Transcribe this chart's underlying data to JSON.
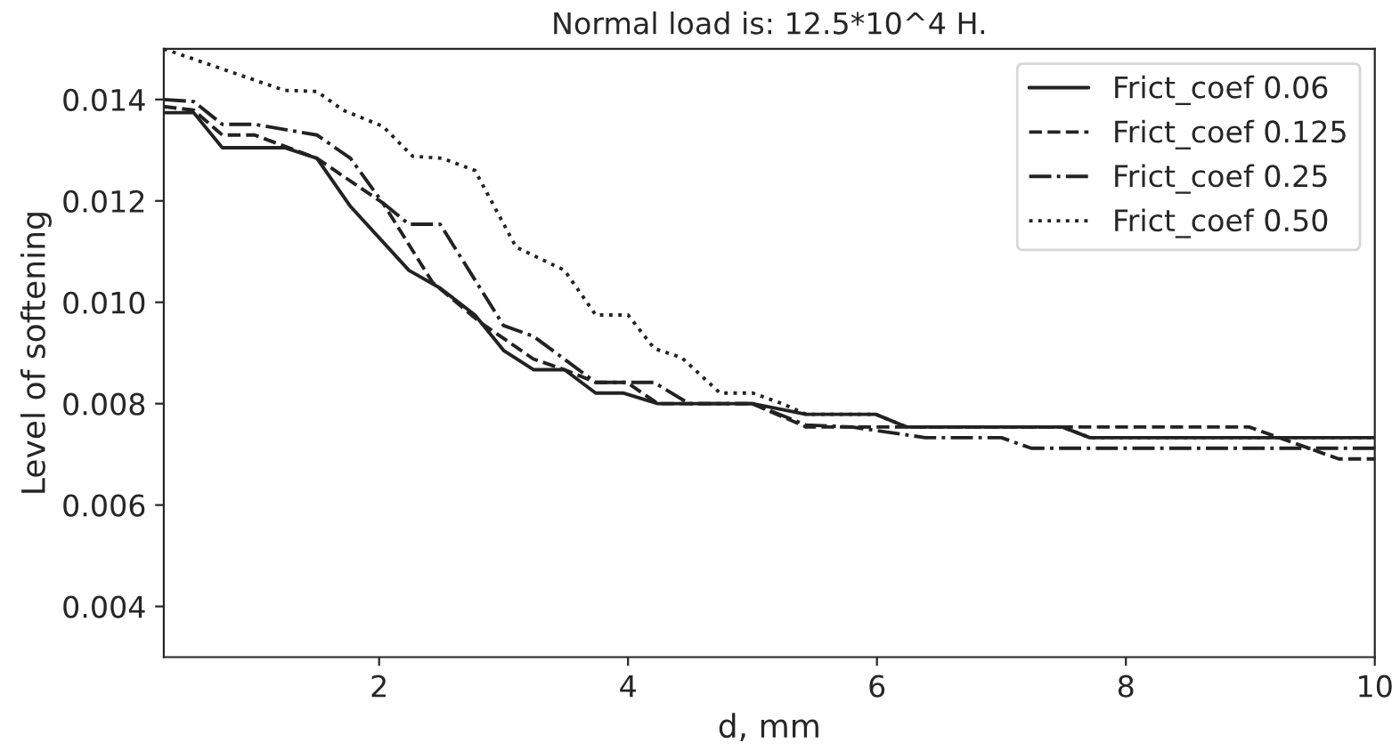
{
  "chart_data": {
    "type": "line",
    "title": "Normal load is: 12.5*10^4 H.",
    "xlabel": "d, mm",
    "ylabel": "Level of softening",
    "xlim": [
      0.27,
      10
    ],
    "ylim": [
      0.003,
      0.015
    ],
    "xticks": [
      2,
      4,
      6,
      8,
      10
    ],
    "yticks": [
      {
        "value": 0.004,
        "label": "0.004"
      },
      {
        "value": 0.006,
        "label": "0.006"
      },
      {
        "value": 0.008,
        "label": "0.008"
      },
      {
        "value": 0.01,
        "label": "0.010"
      },
      {
        "value": 0.012,
        "label": "0.012"
      },
      {
        "value": 0.014,
        "label": "0.014"
      }
    ],
    "grid": false,
    "legend": "top right",
    "series": [
      {
        "name": "Frict_coef 0.06",
        "color": "#222222",
        "line_style": "solid",
        "x": [
          0.27,
          0.51,
          0.74,
          1.24,
          1.5,
          1.77,
          2.24,
          2.49,
          2.77,
          3.0,
          3.24,
          3.49,
          3.74,
          3.96,
          4.24,
          5.0,
          5.43,
          5.99,
          6.24,
          7.49,
          7.71,
          10
        ],
        "values": [
          0.01374,
          0.01374,
          0.01305,
          0.01305,
          0.01284,
          0.01189,
          0.01063,
          0.01028,
          0.00975,
          0.00905,
          0.00867,
          0.00867,
          0.00821,
          0.00821,
          0.008,
          0.008,
          0.00779,
          0.00779,
          0.00754,
          0.00754,
          0.00733,
          0.00733
        ]
      },
      {
        "name": "Frict_coef 0.125",
        "color": "#222222",
        "line_style": "dashed",
        "x": [
          0.27,
          0.51,
          0.74,
          1.0,
          1.5,
          2.03,
          2.43,
          2.81,
          3.24,
          3.49,
          3.74,
          3.99,
          4.24,
          5.0,
          5.43,
          8.99,
          9.71,
          10
        ],
        "values": [
          0.01386,
          0.01379,
          0.0133,
          0.0133,
          0.01284,
          0.01196,
          0.01039,
          0.00961,
          0.00888,
          0.00867,
          0.00842,
          0.00842,
          0.008,
          0.008,
          0.00754,
          0.00754,
          0.00691,
          0.00691
        ]
      },
      {
        "name": "Frict_coef 0.25",
        "color": "#222222",
        "line_style": "dashdot",
        "x": [
          0.27,
          0.51,
          0.74,
          1.0,
          1.5,
          1.77,
          2.03,
          2.24,
          2.49,
          3.0,
          3.24,
          3.74,
          4.21,
          4.49,
          5.0,
          5.43,
          5.8,
          6.39,
          7.0,
          7.24,
          10
        ],
        "values": [
          0.014,
          0.01396,
          0.01351,
          0.01351,
          0.0133,
          0.01284,
          0.01196,
          0.01154,
          0.01154,
          0.00954,
          0.00933,
          0.00842,
          0.00842,
          0.008,
          0.008,
          0.00758,
          0.00754,
          0.00733,
          0.00733,
          0.00712,
          0.00712
        ]
      },
      {
        "name": "Frict_coef 0.50",
        "color": "#222222",
        "line_style": "dotted",
        "x": [
          0.27,
          1.24,
          1.5,
          1.71,
          2.03,
          2.27,
          2.51,
          2.77,
          3.1,
          3.49,
          3.74,
          4.0,
          4.21,
          4.43,
          4.74,
          5.0,
          5.24,
          5.43,
          5.99,
          6.24,
          7.49,
          7.71,
          10
        ],
        "values": [
          0.015,
          0.01418,
          0.01416,
          0.01379,
          0.01347,
          0.01288,
          0.01284,
          0.0126,
          0.01109,
          0.01063,
          0.00975,
          0.00975,
          0.00909,
          0.00891,
          0.00821,
          0.00821,
          0.008,
          0.00779,
          0.00779,
          0.00754,
          0.00754,
          0.00733,
          0.00733
        ]
      }
    ]
  }
}
